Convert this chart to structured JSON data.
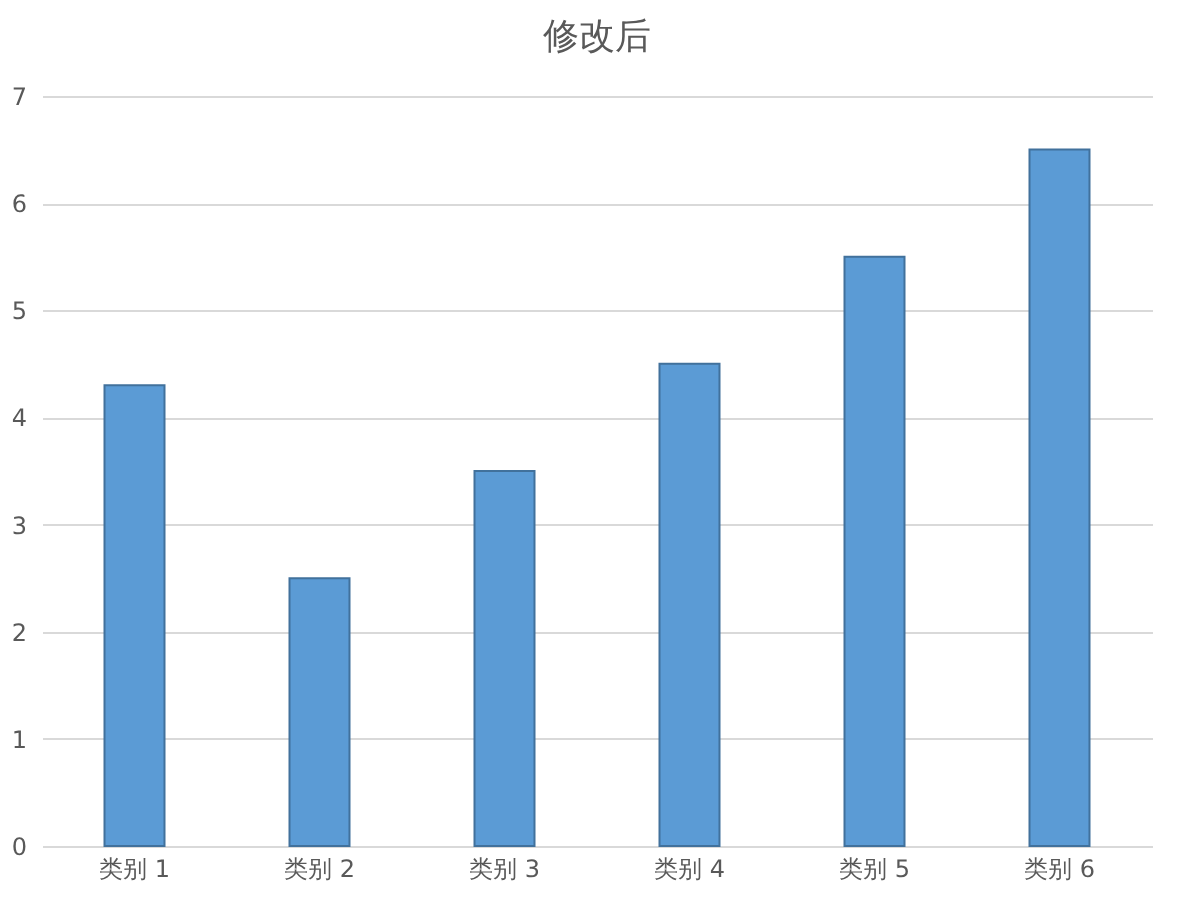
{
  "chart_data": {
    "type": "bar",
    "title": "修改后",
    "categories": [
      "类别 1",
      "类别 2",
      "类别 3",
      "类别 4",
      "类别 5",
      "类别 6"
    ],
    "values": [
      4.3,
      2.5,
      3.5,
      4.5,
      5.5,
      6.5
    ],
    "color": "#5b9bd5",
    "ylim": [
      0,
      7
    ],
    "yticks": [
      0,
      1,
      2,
      3,
      4,
      5,
      6,
      7
    ],
    "grid": "y"
  }
}
